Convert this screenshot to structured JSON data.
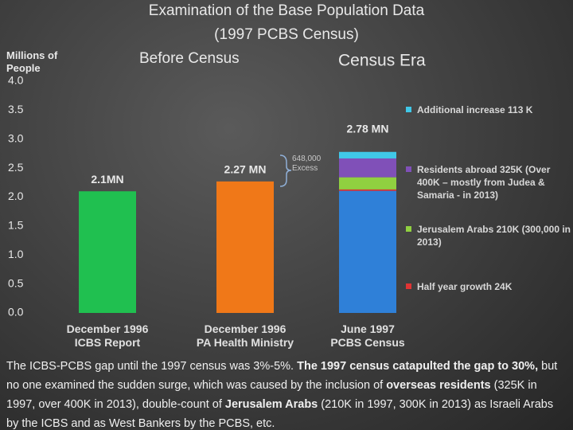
{
  "chart_data": {
    "type": "stacked-bar",
    "title": [
      "Examination of the Base Population Data",
      "(1997 PCBS Census)"
    ],
    "y_axis_label": "Millions of People",
    "headers": [
      "Before Census",
      "Census Era"
    ],
    "categories": [
      "December 1996\nICBS Report",
      "December 1996\nPA Health Ministry",
      "June 1997\nPCBS Census"
    ],
    "ylim": [
      0,
      4
    ],
    "yticks": [
      {
        "value": 0,
        "label": "0.0"
      },
      {
        "value": 0.5,
        "label": "0.5"
      },
      {
        "value": 1,
        "label": "1.0"
      },
      {
        "value": 1.5,
        "label": "1.5"
      },
      {
        "value": 2,
        "label": "2.0"
      },
      {
        "value": 2.5,
        "label": "2.5"
      },
      {
        "value": 3,
        "label": "3.0"
      },
      {
        "value": 3.5,
        "label": "3.5"
      },
      {
        "value": 4,
        "label": "4.0"
      }
    ],
    "series": [
      {
        "colors": [
          "#20c050",
          "#f07818",
          "#2f80d8"
        ],
        "values": [
          2.1,
          2.27,
          2.108
        ],
        "value_labels": [
          "2.1MN",
          "2.27 MN",
          null
        ]
      },
      {
        "name": "Half year growth 24K",
        "color": "#e03434",
        "values": [
          null,
          null,
          0.024
        ]
      },
      {
        "name": "Jerusalem Arabs 210K (300,000 in 2013)",
        "color": "#90d040",
        "values": [
          null,
          null,
          0.21
        ]
      },
      {
        "name": "Residents abroad 325K (Over 400K – mostly from Judea & Samaria - in 2013)",
        "color": "#8050b8",
        "values": [
          null,
          null,
          0.325
        ]
      },
      {
        "name": "Additional increase 113 K",
        "color": "#40c8e8",
        "values": [
          null,
          null,
          0.113
        ]
      }
    ],
    "annotations": [
      {
        "text": "2.78 MN",
        "value": 2.78
      },
      {
        "text": "648,000\nExcess",
        "value": 0.648
      }
    ],
    "footer": [
      {
        "text": "The ICBS-PCBS gap until the 1997 census was 3%-5%. ",
        "bold": false
      },
      {
        "text": "The 1997 census catapulted the gap to 30%,",
        "bold": true
      },
      {
        "text": " but no one examined the sudden surge, which was caused by the inclusion of ",
        "bold": false
      },
      {
        "text": "overseas residents",
        "bold": true
      },
      {
        "text": " (325K in 1997, over 400K in 2013), double-count of ",
        "bold": false
      },
      {
        "text": "Jerusalem Arabs",
        "bold": true
      },
      {
        "text": " (210K in 1997, 300K in 2013) as Israeli Arabs by the ICBS and as West Bankers by the PCBS, etc.",
        "bold": false
      }
    ]
  }
}
